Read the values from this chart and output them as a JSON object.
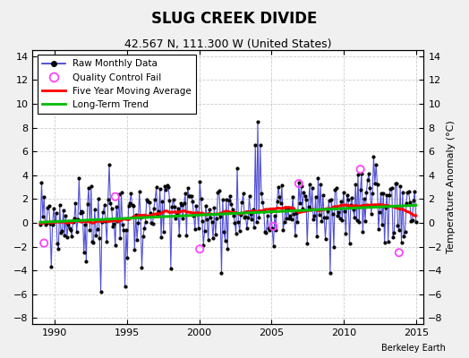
{
  "title": "SLUG CREEK DIVIDE",
  "subtitle": "42.567 N, 111.300 W (United States)",
  "ylabel": "Temperature Anomaly (°C)",
  "watermark": "Berkeley Earth",
  "xlim": [
    1988.5,
    2015.5
  ],
  "ylim": [
    -8.5,
    14.5
  ],
  "yticks": [
    -8,
    -6,
    -4,
    -2,
    0,
    2,
    4,
    6,
    8,
    10,
    12,
    14
  ],
  "xticks": [
    1990,
    1995,
    2000,
    2005,
    2010,
    2015
  ],
  "bg_color": "#f0f0f0",
  "plot_bg_color": "#ffffff",
  "raw_color": "#3333cc",
  "qc_color": "#ff44ff",
  "moving_avg_color": "#ff0000",
  "trend_color": "#00bb00",
  "title_fontsize": 12,
  "subtitle_fontsize": 9,
  "ylabel_fontsize": 8,
  "tick_fontsize": 8,
  "legend_fontsize": 7.5,
  "seed": 99
}
